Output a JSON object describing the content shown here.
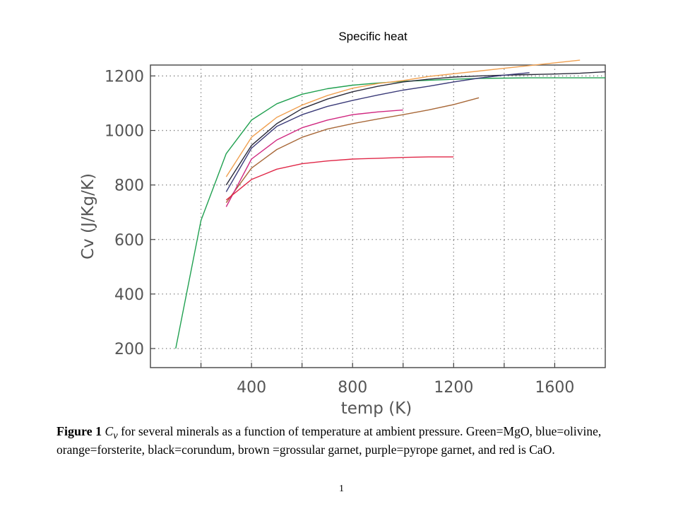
{
  "slide": {
    "title": "Specific heat"
  },
  "caption": {
    "label": "Figure 1",
    "symbol": "C",
    "symbol_subscript": "v",
    "text": "for several minerals as a function of temperature at ambient pressure.  Green=MgO, blue=olivine, orange=forsterite, black=corundum, brown =grossular garnet, purple=pyrope garnet, and red is CaO."
  },
  "page_number": "1",
  "chart_data": {
    "type": "line",
    "xlabel": "temp (K)",
    "ylabel": "Cv (J/Kg/K)",
    "xlim": [
      0,
      1800
    ],
    "ylim": [
      130,
      1240
    ],
    "x_ticks": [
      400,
      800,
      1200,
      1600
    ],
    "y_ticks": [
      200,
      400,
      600,
      800,
      1000,
      1200
    ],
    "x_grid": [
      200,
      400,
      600,
      800,
      1000,
      1200,
      1400,
      1600
    ],
    "y_grid": [
      200,
      400,
      600,
      800,
      1000,
      1200
    ],
    "grid": true,
    "grid_style": "dotted",
    "legend": "none",
    "series": [
      {
        "color": "#20a050",
        "x": [
          100,
          200,
          300,
          400,
          500,
          600,
          700,
          800,
          900,
          1000,
          1100,
          1200,
          1300,
          1400,
          1500,
          1600,
          1700,
          1800
        ],
        "y": [
          200,
          670,
          915,
          1038,
          1098,
          1133,
          1153,
          1166,
          1174,
          1180,
          1184,
          1188,
          1191,
          1192,
          1193,
          1193,
          1193,
          1193
        ]
      },
      {
        "color": "#f0a050",
        "x": [
          300,
          400,
          500,
          600,
          700,
          800,
          900,
          1000,
          1100,
          1200,
          1300,
          1400,
          1500,
          1600,
          1700
        ],
        "y": [
          830,
          975,
          1048,
          1093,
          1128,
          1155,
          1172,
          1183,
          1198,
          1208,
          1218,
          1228,
          1238,
          1248,
          1258
        ]
      },
      {
        "color": "#2a2a3a",
        "x": [
          300,
          400,
          500,
          600,
          700,
          800,
          900,
          1000,
          1100,
          1200,
          1300,
          1400,
          1500,
          1600,
          1700,
          1800
        ],
        "y": [
          800,
          945,
          1025,
          1080,
          1115,
          1142,
          1162,
          1178,
          1188,
          1196,
          1200,
          1203,
          1205,
          1207,
          1210,
          1215
        ]
      },
      {
        "color": "#3a3a78",
        "x": [
          300,
          400,
          500,
          600,
          700,
          800,
          900,
          1000,
          1100,
          1200,
          1300,
          1400,
          1500
        ],
        "y": [
          775,
          935,
          1015,
          1058,
          1088,
          1110,
          1130,
          1148,
          1162,
          1178,
          1192,
          1203,
          1212
        ]
      },
      {
        "color": "#a86838",
        "x": [
          300,
          400,
          500,
          600,
          700,
          800,
          900,
          1000,
          1100,
          1200,
          1300
        ],
        "y": [
          735,
          862,
          930,
          975,
          1005,
          1025,
          1042,
          1058,
          1075,
          1095,
          1120
        ]
      },
      {
        "color": "#d02880",
        "x": [
          300,
          400,
          500,
          600,
          700,
          800,
          900,
          1000
        ],
        "y": [
          720,
          895,
          965,
          1010,
          1038,
          1058,
          1068,
          1075
        ]
      },
      {
        "color": "#e02848",
        "x": [
          300,
          400,
          500,
          600,
          700,
          800,
          900,
          1000,
          1100,
          1200
        ],
        "y": [
          745,
          820,
          858,
          878,
          888,
          895,
          898,
          901,
          903,
          903
        ]
      }
    ]
  }
}
